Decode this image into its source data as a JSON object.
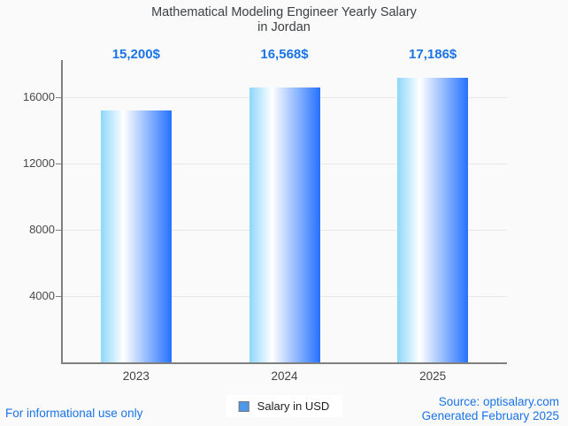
{
  "title": {
    "line1": "Mathematical Modeling Engineer Yearly Salary",
    "line2": "in Jordan"
  },
  "chart_data": {
    "type": "bar",
    "title": "Mathematical Modeling Engineer Yearly Salary in Jordan",
    "categories": [
      "2023",
      "2024",
      "2025"
    ],
    "values": [
      15200,
      16568,
      17186
    ],
    "value_labels": [
      "15,200$",
      "16,568$",
      "17,186$"
    ],
    "series_name": "Salary in USD",
    "yticks": [
      4000,
      8000,
      12000,
      16000
    ],
    "ylim": [
      0,
      18240
    ],
    "xlabel": "",
    "ylabel": "",
    "grid": true,
    "legend_position": "bottom"
  },
  "legend": {
    "label": "Salary in USD"
  },
  "footer": {
    "left": "For informational use only",
    "source": "Source: optisalary.com",
    "generated": "Generated February 2025"
  },
  "colors": {
    "accent_blue": "#1a73e8",
    "bar_gradient_left": "#8dd7fb",
    "bar_gradient_mid": "#ffffff",
    "bar_gradient_right": "#2572fd",
    "legend_swatch": "#4f97e8",
    "axis": "#7f7f7f",
    "grid": "#e8e8e8",
    "title_text": "#3c4043",
    "tick_text": "#4a4a4a",
    "background": "#fafafa"
  }
}
